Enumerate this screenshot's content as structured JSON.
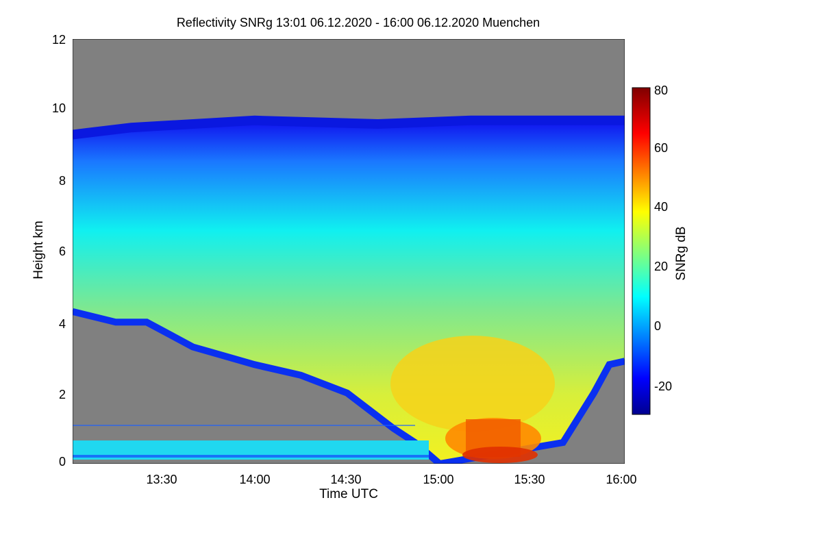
{
  "chart_data": {
    "type": "heatmap",
    "title": "Reflectivity SNRg   13:01 06.12.2020 - 16:00 06.12.2020 Muenchen",
    "xlabel": "Time UTC",
    "ylabel": "Height km",
    "colorbar_label": "SNRg dB",
    "x_range": [
      "13:01",
      "16:00"
    ],
    "x_ticks": [
      "13:30",
      "14:00",
      "14:30",
      "15:00",
      "15:30",
      "16:00"
    ],
    "y_range": [
      0,
      12
    ],
    "y_ticks": [
      "0",
      "2",
      "4",
      "6",
      "8",
      "10",
      "12"
    ],
    "colorbar_range": [
      -30,
      80
    ],
    "colorbar_ticks": [
      "-20",
      "0",
      "20",
      "40",
      "60",
      "80"
    ],
    "no_data_color": "#808080",
    "colormap": "jet",
    "echo_top_km": [
      {
        "time": "13:01",
        "height": 9.3
      },
      {
        "time": "13:20",
        "height": 9.5
      },
      {
        "time": "14:00",
        "height": 9.7
      },
      {
        "time": "14:40",
        "height": 9.6
      },
      {
        "time": "15:10",
        "height": 9.7
      },
      {
        "time": "15:40",
        "height": 9.7
      },
      {
        "time": "16:00",
        "height": 9.7
      }
    ],
    "echo_base_km": [
      {
        "time": "13:01",
        "height": 4.3
      },
      {
        "time": "13:15",
        "height": 4.0
      },
      {
        "time": "13:25",
        "height": 4.0
      },
      {
        "time": "13:40",
        "height": 3.3
      },
      {
        "time": "14:00",
        "height": 2.8
      },
      {
        "time": "14:15",
        "height": 2.5
      },
      {
        "time": "14:30",
        "height": 2.0
      },
      {
        "time": "14:45",
        "height": 1.0
      },
      {
        "time": "14:52",
        "height": 0.6
      },
      {
        "time": "15:00",
        "height": 0.0
      },
      {
        "time": "15:40",
        "height": 0.6
      },
      {
        "time": "15:50",
        "height": 2.0
      },
      {
        "time": "15:55",
        "height": 2.8
      },
      {
        "time": "16:00",
        "height": 2.9
      }
    ],
    "max_reflectivity_region": {
      "time": "15:20",
      "height_km": 0.8,
      "snr_db": 55
    }
  }
}
